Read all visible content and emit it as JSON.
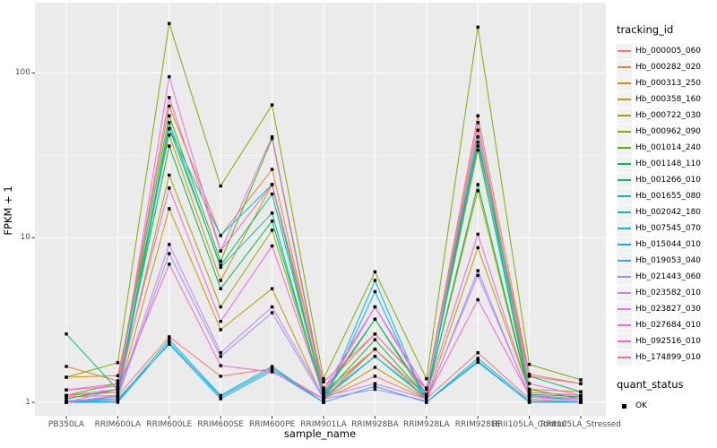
{
  "chart_data": {
    "type": "line",
    "title": "",
    "xlabel": "sample_name",
    "ylabel": "FPKM + 1",
    "y_scale": "log10",
    "y_ticks": [
      1,
      10,
      100
    ],
    "y_minor_gridlines": [
      3.1623,
      31.623
    ],
    "ylim": [
      1,
      260
    ],
    "grid": "on",
    "legend_position": "right",
    "panel_background": "#EBEBEB",
    "gridline_color": "#FFFFFF",
    "point_color": "#000000",
    "legend_title": "tracking_id",
    "categories": [
      "PB350LA",
      "RRIM600LA",
      "RRIM600LE",
      "RRIM600SE",
      "RRIM600PE",
      "RRIM901LA",
      "RRIM928BA",
      "RRIM928LA",
      "RRIM928LE",
      "RRII105LA_Control",
      "RRII105LA_Stressed"
    ],
    "series": [
      {
        "name": "Hb_000005_060",
        "color": "#F8766D",
        "values": [
          1.08,
          1.1,
          2.5,
          1.44,
          1.6,
          1.05,
          1.44,
          1.05,
          2.0,
          1.05,
          1.0
        ]
      },
      {
        "name": "Hb_000282_020",
        "color": "#EA8331",
        "values": [
          1.65,
          1.35,
          63,
          10.3,
          26,
          1.22,
          2.6,
          1.22,
          55,
          1.48,
          1.3
        ]
      },
      {
        "name": "Hb_000313_250",
        "color": "#D89000",
        "values": [
          1.42,
          1.45,
          42,
          5.5,
          21,
          1.16,
          2.1,
          1.1,
          34,
          1.2,
          1.16
        ]
      },
      {
        "name": "Hb_000358_160",
        "color": "#C09B00",
        "values": [
          1.0,
          1.1,
          15,
          2.76,
          4.9,
          1.05,
          1.63,
          1.05,
          8.7,
          1.15,
          1.1
        ]
      },
      {
        "name": "Hb_000722_030",
        "color": "#A3A500",
        "values": [
          1.1,
          1.15,
          24,
          3.8,
          11.1,
          1.1,
          2.1,
          1.1,
          19.3,
          1.1,
          1.05
        ]
      },
      {
        "name": "Hb_000962_090",
        "color": "#7CAE00",
        "values": [
          1.42,
          1.74,
          200,
          20.6,
          64,
          1.39,
          6.2,
          1.39,
          190,
          1.7,
          1.37
        ]
      },
      {
        "name": "Hb_001014_240",
        "color": "#49B500",
        "values": [
          1.1,
          1.3,
          55,
          7.2,
          40,
          1.15,
          3.2,
          1.05,
          45,
          1.2,
          1.05
        ]
      },
      {
        "name": "Hb_001148_110",
        "color": "#00BB4E",
        "values": [
          1.05,
          1.2,
          36,
          4.9,
          12.6,
          1.1,
          2.4,
          1.08,
          21,
          1.12,
          1.08
        ]
      },
      {
        "name": "Hb_001266_010",
        "color": "#00BF7D",
        "values": [
          2.6,
          1.19,
          46,
          6.8,
          18.4,
          1.1,
          3.2,
          1.1,
          38,
          1.44,
          1.16
        ]
      },
      {
        "name": "Hb_001655_080",
        "color": "#00C1A3",
        "values": [
          1.0,
          1.1,
          50,
          6.6,
          14.1,
          1.05,
          1.9,
          1.05,
          41,
          1.1,
          1.02
        ]
      },
      {
        "name": "Hb_002042_180",
        "color": "#00BFC4",
        "values": [
          1.0,
          1.05,
          46,
          10.3,
          21,
          1.08,
          1.9,
          1.08,
          36,
          1.1,
          1.05
        ]
      },
      {
        "name": "Hb_007545_070",
        "color": "#00BAE0",
        "values": [
          1.0,
          1.02,
          2.4,
          1.1,
          1.65,
          1.0,
          5.5,
          1.0,
          1.85,
          1.02,
          1.0
        ]
      },
      {
        "name": "Hb_015044_010",
        "color": "#00B0F6",
        "values": [
          1.0,
          1.0,
          2.3,
          1.08,
          1.6,
          1.0,
          4.7,
          1.0,
          1.78,
          1.0,
          1.0
        ]
      },
      {
        "name": "Hb_019053_040",
        "color": "#35A2FF",
        "values": [
          1.02,
          1.05,
          2.25,
          1.05,
          1.55,
          1.0,
          1.25,
          1.0,
          1.75,
          1.0,
          1.0
        ]
      },
      {
        "name": "Hb_021443_060",
        "color": "#9590FF",
        "values": [
          1.0,
          1.08,
          8.0,
          1.9,
          3.5,
          1.05,
          1.2,
          1.02,
          6.3,
          1.08,
          1.02
        ]
      },
      {
        "name": "Hb_023582_010",
        "color": "#C77CFF",
        "values": [
          1.0,
          1.1,
          9.1,
          2.0,
          3.8,
          1.08,
          1.3,
          1.05,
          5.9,
          1.1,
          1.05
        ]
      },
      {
        "name": "Hb_023827_030",
        "color": "#E76BF3",
        "values": [
          1.0,
          1.2,
          95,
          8.3,
          41,
          1.2,
          3.8,
          1.2,
          50,
          1.3,
          1.1
        ]
      },
      {
        "name": "Hb_027684_010",
        "color": "#FA62DB",
        "values": [
          1.19,
          1.25,
          20,
          3.1,
          8.9,
          1.12,
          3.8,
          1.12,
          10.5,
          1.15,
          1.1
        ]
      },
      {
        "name": "Hb_092516_010",
        "color": "#FF61C9",
        "values": [
          1.1,
          1.2,
          6.9,
          1.67,
          1.53,
          1.05,
          2.1,
          1.05,
          4.2,
          1.1,
          1.05
        ]
      },
      {
        "name": "Hb_174899_010",
        "color": "#FF65AE",
        "values": [
          1.19,
          1.3,
          71,
          8.3,
          21,
          1.33,
          2.6,
          1.2,
          45,
          1.44,
          1.3
        ]
      }
    ],
    "quant_legend": {
      "title": "quant_status",
      "items": [
        {
          "label": "OK",
          "marker": "black-square"
        }
      ]
    }
  }
}
